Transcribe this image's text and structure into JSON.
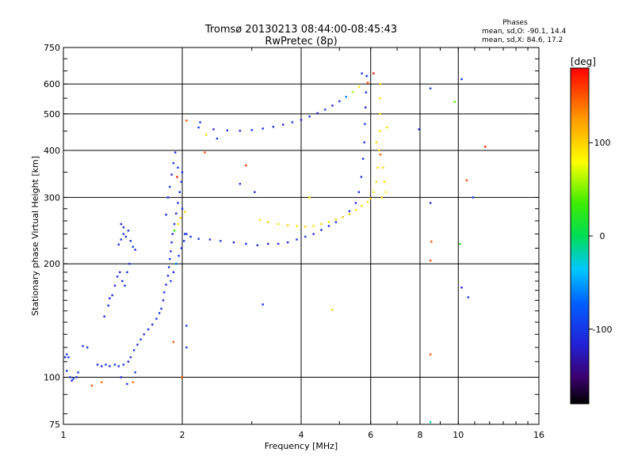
{
  "header": {
    "title_line1": "Tromsø 20130213 08:44:00-08:45:43",
    "title_line2": "RwPretec (8p)"
  },
  "stats": {
    "heading": "Phases",
    "line_o": "mean, sd,O: -90.1, 14.4",
    "line_x": "mean, sd,X: 84.6, 17.2"
  },
  "colorbar": {
    "label": "[deg]",
    "ticks": [
      "100",
      "0",
      "-100"
    ],
    "tick_values": [
      100,
      0,
      -100
    ],
    "range": [
      -180,
      180
    ]
  },
  "chart_data": {
    "type": "scatter",
    "xlabel": "Frequency [MHz]",
    "ylabel": "Stationary phase Virtual Height [km]",
    "xscale": "log2",
    "yscale": "log",
    "xlim": [
      1,
      16
    ],
    "ylim": [
      75,
      750
    ],
    "xticks": [
      {
        "v": 1,
        "label": "1"
      },
      {
        "v": 2,
        "label": "2"
      },
      {
        "v": 4,
        "label": "4"
      },
      {
        "v": 6,
        "label": "6"
      },
      {
        "v": 8,
        "label": "8"
      },
      {
        "v": 10,
        "label": "10"
      },
      {
        "v": 16,
        "label": "16"
      }
    ],
    "yticks": [
      {
        "v": 75,
        "label": "75"
      },
      {
        "v": 100,
        "label": "100"
      },
      {
        "v": 200,
        "label": "200"
      },
      {
        "v": 300,
        "label": "300"
      },
      {
        "v": 400,
        "label": "400"
      },
      {
        "v": 500,
        "label": "500"
      },
      {
        "v": 600,
        "label": "600"
      },
      {
        "v": 750,
        "label": "750"
      }
    ],
    "xgrid": [
      2,
      4,
      6,
      8,
      10
    ],
    "ygrid": [
      100,
      200,
      300,
      400,
      500,
      600
    ],
    "grid": true,
    "point_color": "phase [deg]",
    "series": [
      {
        "points": [
          [
            1.01,
            113,
            -110
          ],
          [
            1.02,
            115,
            -100
          ],
          [
            1.03,
            113,
            -105
          ],
          [
            1.02,
            104,
            -105
          ],
          [
            1.04,
            100,
            -110
          ],
          [
            1.06,
            99,
            -100
          ],
          [
            1.08,
            100,
            -110
          ],
          [
            1.09,
            103,
            -105
          ],
          [
            1.05,
            98,
            -120
          ]
        ]
      },
      {
        "points": [
          [
            1.22,
            108,
            -110
          ],
          [
            1.25,
            107,
            -110
          ],
          [
            1.28,
            108,
            -100
          ],
          [
            1.31,
            107,
            -110
          ],
          [
            1.35,
            108,
            -105
          ],
          [
            1.38,
            107,
            -110
          ],
          [
            1.42,
            108,
            -100
          ],
          [
            1.46,
            110,
            -110
          ],
          [
            1.48,
            113,
            -105
          ]
        ]
      },
      {
        "points": [
          [
            1.18,
            95,
            150
          ],
          [
            1.25,
            97,
            140
          ],
          [
            1.45,
            96,
            -100
          ],
          [
            1.4,
            100,
            -110
          ],
          [
            1.5,
            97,
            140
          ],
          [
            1.52,
            103,
            -100
          ],
          [
            1.12,
            121,
            -110
          ],
          [
            1.15,
            120,
            -100
          ]
        ]
      },
      {
        "points": [
          [
            1.51,
            118,
            -105
          ],
          [
            1.54,
            122,
            -110
          ],
          [
            1.57,
            126,
            -100
          ],
          [
            1.6,
            130,
            -110
          ],
          [
            1.64,
            134,
            -105
          ],
          [
            1.68,
            138,
            -110
          ],
          [
            1.72,
            143,
            -100
          ],
          [
            1.75,
            148,
            -110
          ],
          [
            1.77,
            152,
            -105
          ],
          [
            1.79,
            160,
            -110
          ],
          [
            1.8,
            168,
            -100
          ],
          [
            1.82,
            176,
            -110
          ],
          [
            1.84,
            186,
            -105
          ],
          [
            1.85,
            196,
            -110
          ],
          [
            1.86,
            206,
            -100
          ],
          [
            1.87,
            216,
            -110
          ],
          [
            1.88,
            228,
            -105
          ],
          [
            1.89,
            240,
            -110
          ],
          [
            1.91,
            255,
            -100
          ],
          [
            1.93,
            272,
            -110
          ],
          [
            1.95,
            290,
            -105
          ],
          [
            1.97,
            310,
            -110
          ],
          [
            1.99,
            330,
            -100
          ],
          [
            2.0,
            350,
            -110
          ]
        ]
      },
      {
        "points": [
          [
            1.27,
            145,
            -110
          ],
          [
            1.3,
            155,
            -100
          ],
          [
            1.31,
            162,
            -110
          ],
          [
            1.33,
            165,
            -105
          ],
          [
            1.35,
            175,
            -110
          ],
          [
            1.37,
            185,
            -100
          ],
          [
            1.39,
            190,
            -110
          ],
          [
            1.41,
            180,
            -105
          ],
          [
            1.43,
            175,
            -110
          ],
          [
            1.45,
            190,
            -100
          ],
          [
            1.47,
            200,
            -110
          ]
        ]
      },
      {
        "points": [
          [
            1.38,
            225,
            -110
          ],
          [
            1.4,
            232,
            -105
          ],
          [
            1.42,
            240,
            -100
          ],
          [
            1.44,
            236,
            -110
          ],
          [
            1.46,
            245,
            -105
          ],
          [
            1.48,
            230,
            -110
          ],
          [
            1.5,
            222,
            -100
          ],
          [
            1.52,
            218,
            -110
          ],
          [
            1.4,
            255,
            -105
          ],
          [
            1.42,
            250,
            -110
          ]
        ]
      },
      {
        "points": [
          [
            1.82,
            270,
            -110
          ],
          [
            1.84,
            300,
            -105
          ],
          [
            1.86,
            320,
            -100
          ],
          [
            1.88,
            345,
            -110
          ],
          [
            1.9,
            370,
            -105
          ],
          [
            1.92,
            395,
            -110
          ],
          [
            1.95,
            360,
            -100
          ],
          [
            1.97,
            310,
            -110
          ],
          [
            2.0,
            280,
            -105
          ],
          [
            1.94,
            340,
            170
          ]
        ]
      },
      {
        "points": [
          [
            1.87,
            180,
            -100
          ],
          [
            1.9,
            190,
            -110
          ],
          [
            1.93,
            200,
            -60
          ],
          [
            1.96,
            210,
            -100
          ],
          [
            1.99,
            220,
            -110
          ],
          [
            2.02,
            230,
            -100
          ],
          [
            2.05,
            240,
            -110
          ],
          [
            1.91,
            245,
            20
          ],
          [
            1.95,
            255,
            100
          ],
          [
            1.98,
            265,
            100
          ],
          [
            2.03,
            275,
            100
          ]
        ]
      },
      {
        "points": [
          [
            2.03,
            240,
            -100
          ],
          [
            2.1,
            236,
            -110
          ],
          [
            2.2,
            233,
            -105
          ],
          [
            2.35,
            232,
            -110
          ],
          [
            2.5,
            230,
            -100
          ],
          [
            2.7,
            228,
            -110
          ],
          [
            2.9,
            226,
            -105
          ],
          [
            3.1,
            224,
            -110
          ],
          [
            3.3,
            226,
            -120
          ],
          [
            3.5,
            226,
            -110
          ],
          [
            3.7,
            228,
            -105
          ],
          [
            3.9,
            232,
            -110
          ],
          [
            4.1,
            236,
            -100
          ],
          [
            4.3,
            240,
            -110
          ],
          [
            4.5,
            246,
            -105
          ],
          [
            4.7,
            252,
            -110
          ],
          [
            4.9,
            258,
            -100
          ],
          [
            5.1,
            266,
            -110
          ],
          [
            5.3,
            276,
            -105
          ],
          [
            5.5,
            290,
            -110
          ],
          [
            5.6,
            310,
            -100
          ],
          [
            5.68,
            340,
            -110
          ],
          [
            5.74,
            380,
            -105
          ],
          [
            5.78,
            420,
            -110
          ],
          [
            5.8,
            470,
            -100
          ],
          [
            5.82,
            520,
            -110
          ],
          [
            5.84,
            570,
            -105
          ],
          [
            5.86,
            630,
            -110
          ]
        ]
      },
      {
        "points": [
          [
            3.15,
            262,
            90
          ],
          [
            3.3,
            258,
            100
          ],
          [
            3.5,
            255,
            95
          ],
          [
            3.7,
            253,
            100
          ],
          [
            3.9,
            252,
            90
          ],
          [
            4.1,
            251,
            100
          ],
          [
            4.3,
            252,
            95
          ],
          [
            4.5,
            255,
            100
          ],
          [
            4.7,
            258,
            90
          ],
          [
            4.9,
            262,
            100
          ],
          [
            5.1,
            266,
            95
          ],
          [
            5.3,
            271,
            100
          ],
          [
            5.5,
            278,
            90
          ],
          [
            5.7,
            285,
            100
          ],
          [
            5.9,
            292,
            95
          ],
          [
            6.0,
            298,
            100
          ],
          [
            6.1,
            310,
            90
          ],
          [
            6.2,
            330,
            100
          ],
          [
            6.25,
            360,
            95
          ],
          [
            6.3,
            400,
            100
          ],
          [
            6.32,
            450,
            90
          ],
          [
            6.33,
            500,
            100
          ],
          [
            6.34,
            550,
            95
          ],
          [
            6.35,
            600,
            100
          ]
        ]
      },
      {
        "points": [
          [
            2.2,
            460,
            -100
          ],
          [
            2.4,
            455,
            -110
          ],
          [
            2.6,
            452,
            -105
          ],
          [
            2.8,
            451,
            -110
          ],
          [
            3.0,
            453,
            -100
          ],
          [
            3.2,
            457,
            -110
          ],
          [
            3.4,
            462,
            -105
          ],
          [
            3.6,
            468,
            -110
          ],
          [
            3.8,
            475,
            -100
          ],
          [
            4.0,
            482,
            -110
          ],
          [
            4.2,
            492,
            -105
          ],
          [
            4.4,
            502,
            -110
          ],
          [
            4.6,
            513,
            -100
          ],
          [
            4.8,
            526,
            -110
          ],
          [
            5.0,
            540,
            -100
          ],
          [
            5.2,
            555,
            -60
          ],
          [
            5.4,
            572,
            60
          ],
          [
            5.6,
            590,
            90
          ]
        ]
      },
      {
        "points": [
          [
            6.2,
            420,
            100
          ],
          [
            6.35,
            390,
            150
          ],
          [
            6.45,
            360,
            100
          ],
          [
            6.5,
            330,
            95
          ],
          [
            6.55,
            310,
            90
          ],
          [
            6.4,
            300,
            100
          ],
          [
            6.6,
            460,
            95
          ],
          [
            5.9,
            605,
            150
          ],
          [
            6.1,
            640,
            170
          ],
          [
            5.7,
            640,
            -110
          ]
        ]
      },
      {
        "points": [
          [
            2.22,
            475,
            -100
          ],
          [
            2.05,
            480,
            150
          ],
          [
            2.3,
            440,
            100
          ],
          [
            2.28,
            395,
            150
          ],
          [
            2.45,
            430,
            -100
          ],
          [
            2.9,
            365,
            160
          ],
          [
            3.05,
            310,
            -110
          ],
          [
            2.8,
            326,
            -100
          ],
          [
            3.2,
            156,
            -110
          ],
          [
            4.2,
            300,
            90
          ],
          [
            4.8,
            151,
            100
          ],
          [
            2.05,
            137,
            -100
          ],
          [
            2.0,
            100,
            150
          ],
          [
            2.05,
            120,
            -100
          ],
          [
            1.9,
            124,
            150
          ]
        ]
      },
      {
        "points": [
          [
            7.95,
            455,
            -110
          ],
          [
            8.5,
            584,
            -100
          ],
          [
            8.5,
            290,
            -110
          ],
          [
            8.55,
            229,
            150
          ],
          [
            8.5,
            204,
            150
          ],
          [
            8.5,
            115,
            150
          ],
          [
            8.5,
            76,
            -20
          ],
          [
            9.8,
            538,
            40
          ],
          [
            10.2,
            618,
            -100
          ],
          [
            10.5,
            333,
            150
          ],
          [
            10.9,
            300,
            -100
          ],
          [
            11.7,
            409,
            170
          ],
          [
            10.1,
            226,
            20
          ],
          [
            10.2,
            173,
            -110
          ],
          [
            10.6,
            163,
            -100
          ]
        ]
      }
    ]
  }
}
